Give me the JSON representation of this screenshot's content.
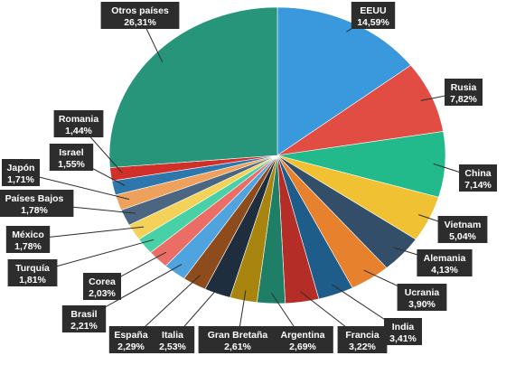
{
  "chart_data": {
    "type": "pie",
    "title": "",
    "slices": [
      {
        "name": "EEUU",
        "label": "14,59%",
        "value": 14.59,
        "color": "#3a98dc"
      },
      {
        "name": "Rusia",
        "label": "7,82%",
        "value": 7.82,
        "color": "#e24d43"
      },
      {
        "name": "China",
        "label": "7,14%",
        "value": 7.14,
        "color": "#22b98b"
      },
      {
        "name": "Vietnam",
        "label": "5,04%",
        "value": 5.04,
        "color": "#f0c133"
      },
      {
        "name": "Alemania",
        "label": "4,13%",
        "value": 4.13,
        "color": "#324e68"
      },
      {
        "name": "Ucrania",
        "label": "3,90%",
        "value": 3.9,
        "color": "#e8812d"
      },
      {
        "name": "India",
        "label": "3,41%",
        "value": 3.41,
        "color": "#1e5c8a"
      },
      {
        "name": "Francia",
        "label": "3,22%",
        "value": 3.22,
        "color": "#b42d27"
      },
      {
        "name": "Argentina",
        "label": "2,69%",
        "value": 2.69,
        "color": "#1f7f66"
      },
      {
        "name": "Gran Bretaña",
        "label": "2,61%",
        "value": 2.61,
        "color": "#a8850f"
      },
      {
        "name": "Italia",
        "label": "2,53%",
        "value": 2.53,
        "color": "#1f2e3e"
      },
      {
        "name": "España",
        "label": "2,29%",
        "value": 2.29,
        "color": "#8e4b1c"
      },
      {
        "name": "Brasil",
        "label": "2,21%",
        "value": 2.21,
        "color": "#4fa4e0"
      },
      {
        "name": "Corea",
        "label": "2,03%",
        "value": 2.03,
        "color": "#ea6e66"
      },
      {
        "name": "Turquía",
        "label": "1,81%",
        "value": 1.81,
        "color": "#48d0a6"
      },
      {
        "name": "México",
        "label": "1,78%",
        "value": 1.78,
        "color": "#f4d25a"
      },
      {
        "name": "Países Bajos",
        "label": "1,78%",
        "value": 1.78,
        "color": "#4b6680"
      },
      {
        "name": "Japón",
        "label": "1,71%",
        "value": 1.71,
        "color": "#eda15c"
      },
      {
        "name": "Israel",
        "label": "1,55%",
        "value": 1.55,
        "color": "#2e77ad"
      },
      {
        "name": "Romania",
        "label": "1,44%",
        "value": 1.44,
        "color": "#d1302a"
      },
      {
        "name": "Otros países",
        "label": "26,31%",
        "value": 26.31,
        "color": "#27957a"
      }
    ]
  }
}
